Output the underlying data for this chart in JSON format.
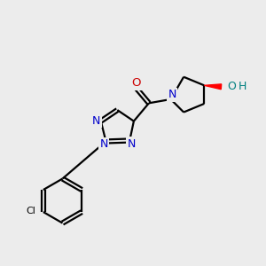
{
  "background_color": "#ececec",
  "bond_color": "#000000",
  "N_color": "#0000cc",
  "O_color": "#cc0000",
  "Cl_color": "#000000",
  "OH_color": "#008080",
  "H_color": "#008080",
  "figsize": [
    3.0,
    3.0
  ],
  "dpi": 100,
  "xlim": [
    0,
    10
  ],
  "ylim": [
    0,
    10
  ]
}
